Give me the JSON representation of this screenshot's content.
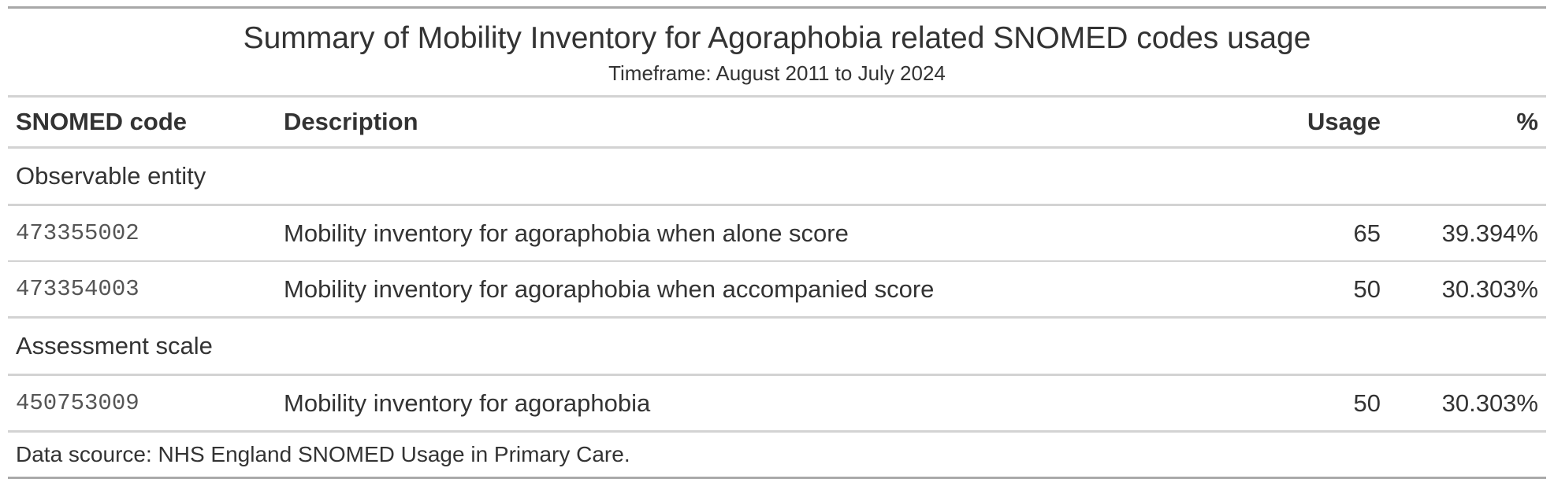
{
  "title": "Summary of Mobility Inventory for Agoraphobia related SNOMED codes usage",
  "subtitle": "Timeframe: August 2011 to July 2024",
  "columns": {
    "code": "SNOMED code",
    "description": "Description",
    "usage": "Usage",
    "percent": "%"
  },
  "groups": [
    {
      "label": "Observable entity",
      "rows": [
        {
          "code": "473355002",
          "description": "Mobility inventory for agoraphobia when alone score",
          "usage": "65",
          "percent": "39.394%"
        },
        {
          "code": "473354003",
          "description": "Mobility inventory for agoraphobia when accompanied score",
          "usage": "50",
          "percent": "30.303%"
        }
      ]
    },
    {
      "label": "Assessment scale",
      "rows": [
        {
          "code": "450753009",
          "description": "Mobility inventory for agoraphobia",
          "usage": "50",
          "percent": "30.303%"
        }
      ]
    }
  ],
  "footer": "Data scource: NHS England SNOMED Usage in Primary Care."
}
